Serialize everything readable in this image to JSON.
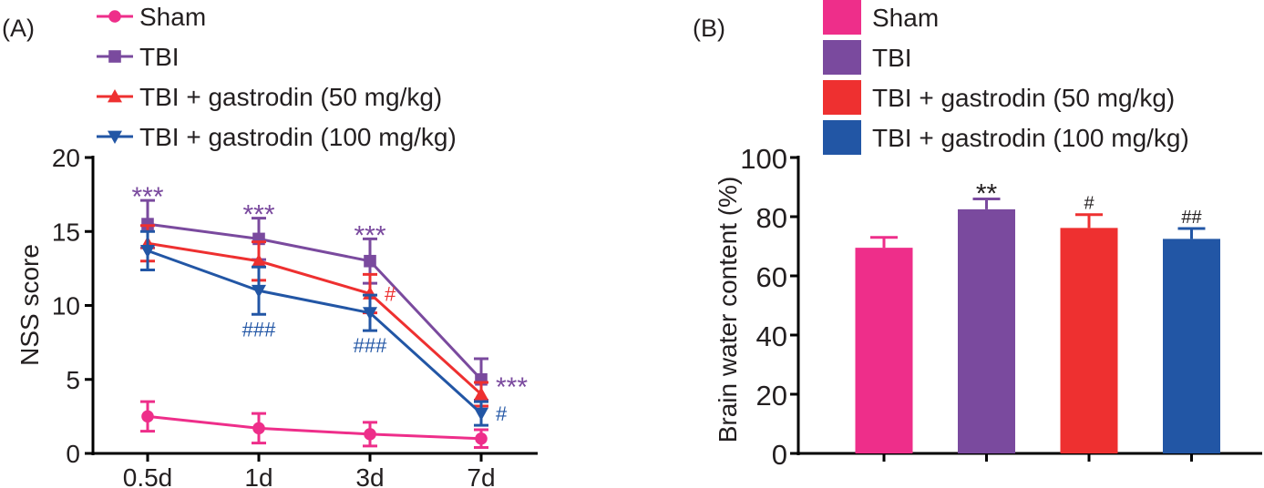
{
  "colors": {
    "sham": "#EE2E8A",
    "tbi": "#7A4A9E",
    "g50": "#EE3030",
    "g100": "#2256A5",
    "axis": "#000000"
  },
  "chart_data": [
    {
      "panel": "(A)",
      "type": "line",
      "xlabel": "",
      "ylabel": "NSS score",
      "ylim": [
        0,
        20
      ],
      "yticks": [
        "0",
        "5",
        "10",
        "15",
        "20"
      ],
      "categories": [
        "0.5d",
        "1d",
        "3d",
        "7d"
      ],
      "legend_position": "top",
      "series": [
        {
          "name": "Sham",
          "key": "sham",
          "marker": "circle",
          "values": [
            2.5,
            1.7,
            1.3,
            1.0
          ],
          "errors": [
            1.0,
            1.0,
            0.8,
            0.6
          ]
        },
        {
          "name": "TBI",
          "key": "tbi",
          "marker": "square",
          "values": [
            15.5,
            14.5,
            13.0,
            5.0
          ],
          "errors": [
            1.6,
            1.4,
            1.5,
            1.4
          ]
        },
        {
          "name": "TBI + gastrodin (50 mg/kg)",
          "key": "g50",
          "marker": "triangle-up",
          "values": [
            14.2,
            13.0,
            10.8,
            4.0
          ],
          "errors": [
            1.2,
            1.3,
            1.3,
            0.8
          ]
        },
        {
          "name": "TBI + gastrodin (100 mg/kg)",
          "key": "g100",
          "marker": "triangle-down",
          "values": [
            13.7,
            11.0,
            9.5,
            2.7
          ],
          "errors": [
            1.3,
            1.6,
            1.2,
            0.8
          ]
        }
      ],
      "annotations": [
        {
          "text": "***",
          "key": "tbi",
          "category": "0.5d",
          "pos": "above"
        },
        {
          "text": "***",
          "key": "tbi",
          "category": "1d",
          "pos": "above"
        },
        {
          "text": "***",
          "key": "tbi",
          "category": "3d",
          "pos": "above"
        },
        {
          "text": "***",
          "key": "tbi",
          "category": "7d",
          "pos": "right"
        },
        {
          "text": "###",
          "key": "g100",
          "category": "1d",
          "pos": "below"
        },
        {
          "text": "###",
          "key": "g100",
          "category": "3d",
          "pos": "below"
        },
        {
          "text": "#",
          "key": "g50",
          "category": "3d",
          "pos": "right"
        },
        {
          "text": "#",
          "key": "g100",
          "category": "7d",
          "pos": "right"
        }
      ]
    },
    {
      "panel": "(B)",
      "type": "bar",
      "xlabel": "",
      "ylabel": "Brain water content (%)",
      "ylim": [
        0,
        100
      ],
      "yticks": [
        "0",
        "20",
        "40",
        "60",
        "80",
        "100"
      ],
      "legend_position": "top",
      "categories": [
        "Sham",
        "TBI",
        "TBI + gastrodin (50 mg/kg)",
        "TBI + gastrodin (100 mg/kg)"
      ],
      "keys": [
        "sham",
        "tbi",
        "g50",
        "g100"
      ],
      "values": [
        69.5,
        82.5,
        76.2,
        72.5
      ],
      "errors": [
        3.5,
        3.5,
        4.5,
        3.5
      ],
      "annotations": [
        "",
        "**",
        "#",
        "##"
      ]
    }
  ]
}
